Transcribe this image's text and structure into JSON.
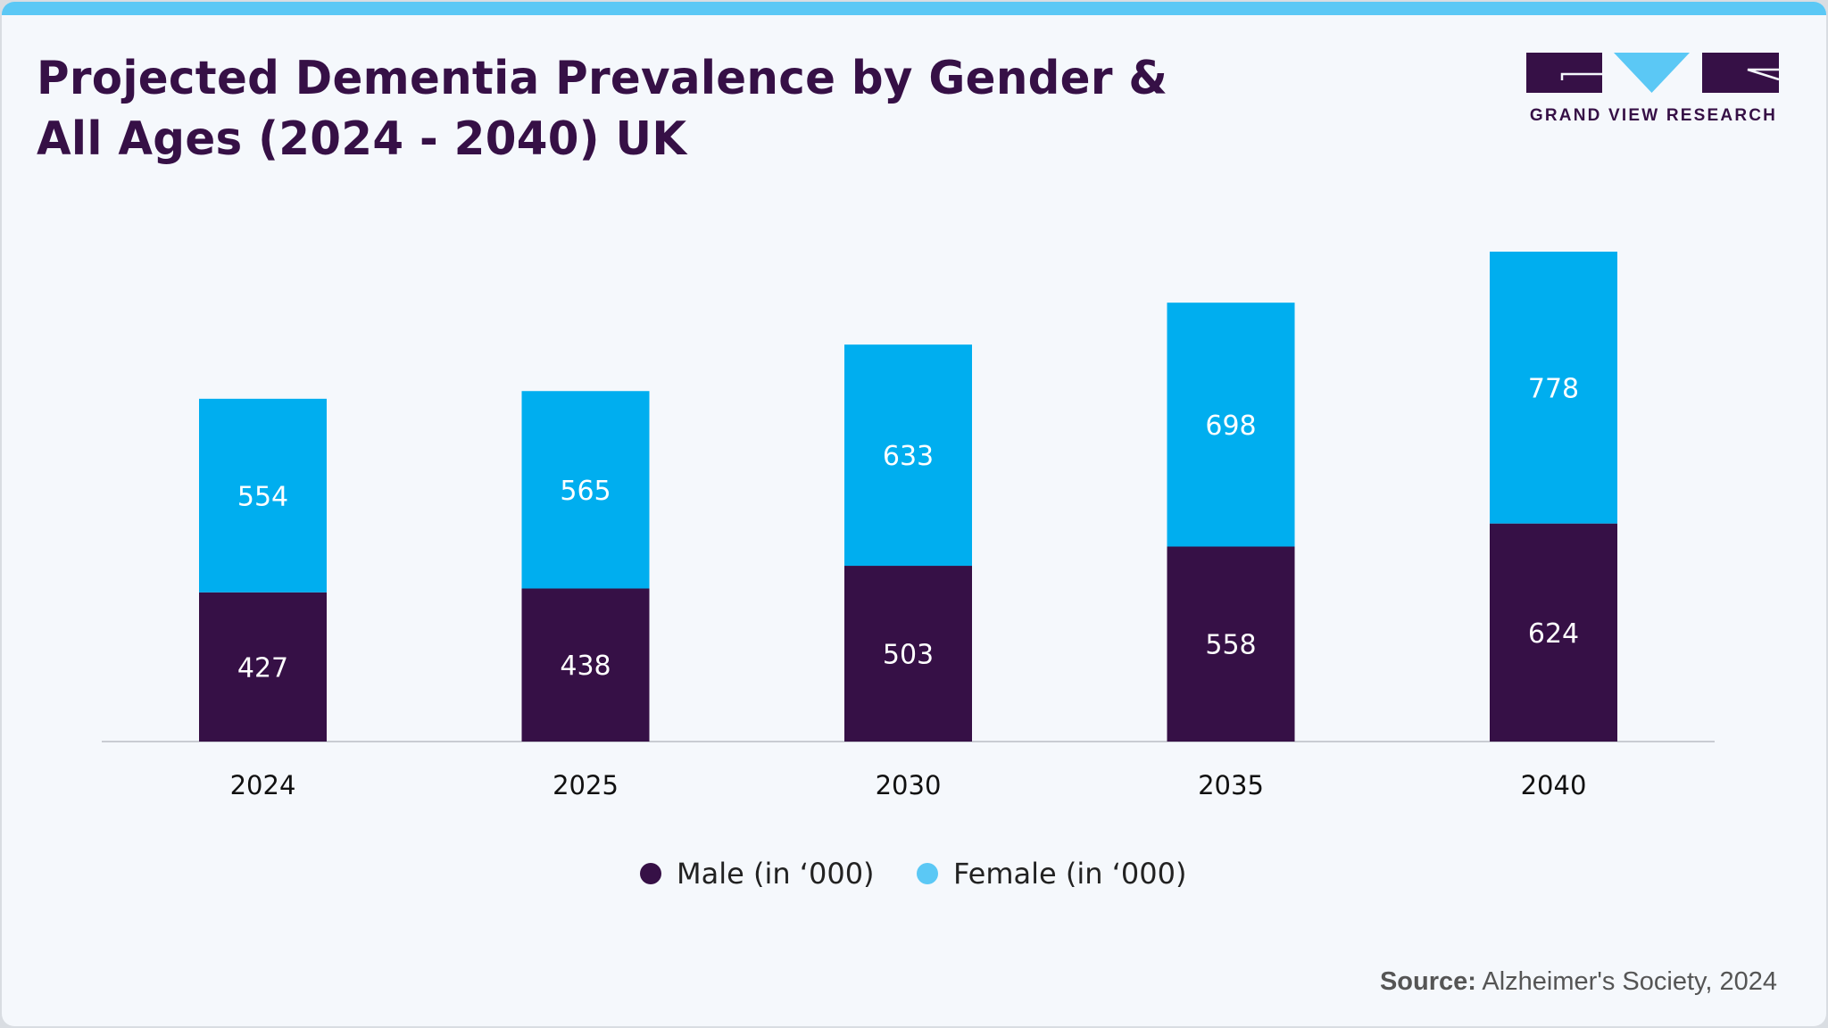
{
  "title_line1": "Projected Dementia Prevalence by Gender &",
  "title_line2": "All Ages (2024 - 2040) UK",
  "logo": {
    "text": "GRAND VIEW RESEARCH"
  },
  "source": {
    "label": "Source:",
    "text": "Alzheimer's Society, 2024"
  },
  "colors": {
    "male": "#361046",
    "female": "#00aeef",
    "accent": "#5bc8f5"
  },
  "chart_data": {
    "type": "bar",
    "stacked": true,
    "title": "Projected Dementia Prevalence by Gender & All Ages (2024 - 2040) UK",
    "categories": [
      "2024",
      "2025",
      "2030",
      "2035",
      "2040"
    ],
    "series": [
      {
        "name": "Male (in ‘000)",
        "values": [
          427,
          438,
          503,
          558,
          624
        ]
      },
      {
        "name": "Female (in ‘000)",
        "values": [
          554,
          565,
          633,
          698,
          778
        ]
      }
    ],
    "ylim": [
      0,
      1402
    ],
    "grid": false,
    "legend": "bottom-center"
  }
}
